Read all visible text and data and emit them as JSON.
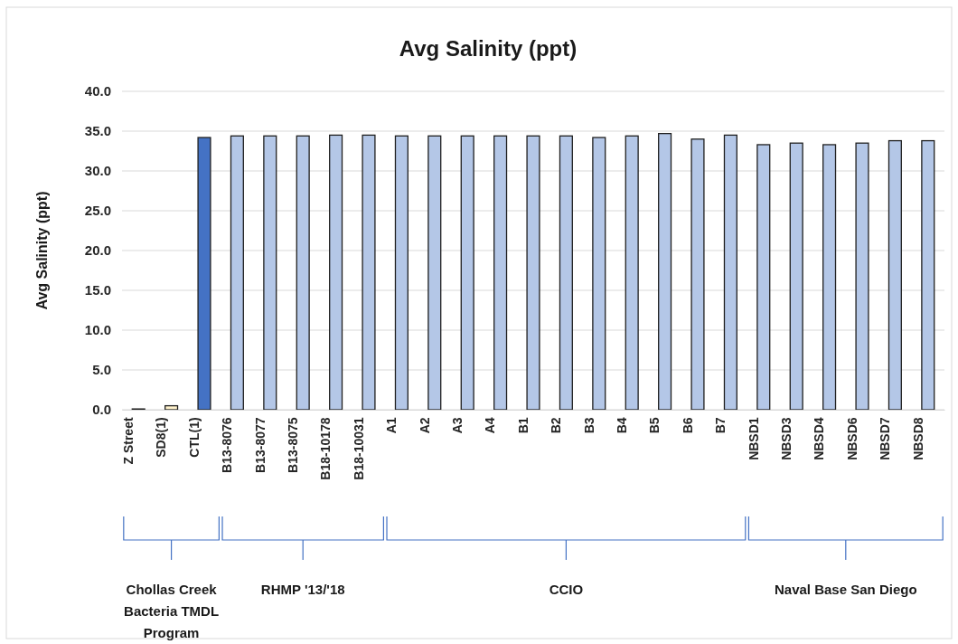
{
  "chart_data": {
    "type": "bar",
    "title": "Avg Salinity (ppt)",
    "ylabel": "Avg Salinity (ppt)",
    "categories": [
      "Z Street",
      "SD8(1)",
      "CTL(1)",
      "B13-8076",
      "B13-8077",
      "B13-8075",
      "B18-10178",
      "B18-10031",
      "A1",
      "A2",
      "A3",
      "A4",
      "B1",
      "B2",
      "B3",
      "B4",
      "B5",
      "B6",
      "B7",
      "NBSD1",
      "NBSD3",
      "NBSD4",
      "NBSD6",
      "NBSD7",
      "NBSD8"
    ],
    "values": [
      0.1,
      0.5,
      34.2,
      34.4,
      34.4,
      34.4,
      34.5,
      34.5,
      34.4,
      34.4,
      34.4,
      34.4,
      34.4,
      34.4,
      34.2,
      34.4,
      34.7,
      34.0,
      34.5,
      33.3,
      33.5,
      33.3,
      33.5,
      33.8,
      33.8
    ],
    "colors": [
      "#4472c4",
      "#fff2cc",
      "#4472c4",
      "#b4c7e7",
      "#b4c7e7",
      "#b4c7e7",
      "#b4c7e7",
      "#b4c7e7",
      "#b4c7e7",
      "#b4c7e7",
      "#b4c7e7",
      "#b4c7e7",
      "#b4c7e7",
      "#b4c7e7",
      "#b4c7e7",
      "#b4c7e7",
      "#b4c7e7",
      "#b4c7e7",
      "#b4c7e7",
      "#b4c7e7",
      "#b4c7e7",
      "#b4c7e7",
      "#b4c7e7",
      "#b4c7e7",
      "#b4c7e7"
    ],
    "ylim": [
      0,
      40
    ],
    "yticks": [
      {
        "value": 0,
        "label": "0.0"
      },
      {
        "value": 5,
        "label": "5.0"
      },
      {
        "value": 10,
        "label": "10.0"
      },
      {
        "value": 15,
        "label": "15.0"
      },
      {
        "value": 20,
        "label": "20.0"
      },
      {
        "value": 25,
        "label": "25.0"
      },
      {
        "value": 30,
        "label": "30.0"
      },
      {
        "value": 35,
        "label": "35.0"
      },
      {
        "value": 40,
        "label": "40.0"
      }
    ],
    "grid": "y",
    "annotations": [
      "Chollas Creek Bacteria TMDL Program",
      "RHMP '13/'18",
      "CCIO",
      "Naval Base San Diego"
    ]
  }
}
